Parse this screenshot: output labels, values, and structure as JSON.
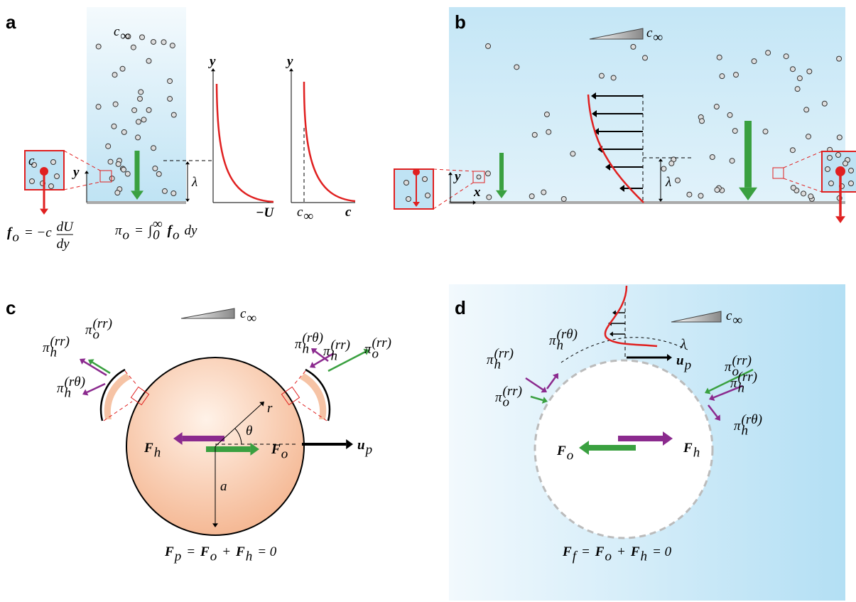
{
  "panel_a": {
    "label": "a",
    "conc": {
      "sym": "c",
      "sub": "∞"
    },
    "inset_conc": "c",
    "y_axis": "y",
    "decay_length": "λ",
    "potential_plot": {
      "y_label": "y",
      "x_label": "−U"
    },
    "conc_plot": {
      "y_label": "y",
      "x_label": "c",
      "tick": {
        "sym": "c",
        "sub": "∞"
      }
    },
    "force_eq": [
      {
        "sym": "f",
        "sub": "o"
      },
      {
        "sym": "= −c"
      },
      {
        "frac": [
          "dU",
          "dy"
        ]
      }
    ],
    "pressure_eq": [
      {
        "sym": "π",
        "sub": "o"
      },
      {
        "sym": "="
      },
      {
        "sym": "∫",
        "sub": "0",
        "sup": "∞"
      },
      {
        "sym": "f",
        "sub": "o"
      },
      {
        "sym": "dy"
      }
    ]
  },
  "panel_b": {
    "label": "b",
    "conc": {
      "sym": "c",
      "sub": "∞"
    },
    "y_axis": "y",
    "x_axis": "x",
    "decay_length": "λ"
  },
  "panel_c": {
    "label": "c",
    "conc": {
      "sym": "c",
      "sub": "∞"
    },
    "hydro_force": {
      "sym": "F",
      "sub": "h"
    },
    "osmotic_force": {
      "sym": "F",
      "sub": "o"
    },
    "velocity": {
      "sym": "u",
      "sub": "p"
    },
    "radius": "a",
    "r": "r",
    "theta": "θ",
    "stress_labels": [
      {
        "sym": "π",
        "sub": "o",
        "sup": "(rr)"
      },
      {
        "sym": "π",
        "sub": "h",
        "sup": "(rr)"
      },
      {
        "sym": "π",
        "sub": "h",
        "sup": "(rθ)"
      },
      {
        "sym": "π",
        "sub": "h",
        "sup": "(rθ)"
      },
      {
        "sym": "π",
        "sub": "h",
        "sup": "(rr)"
      },
      {
        "sym": "π",
        "sub": "o",
        "sup": "(rr)"
      }
    ],
    "balance": [
      {
        "sym": "F",
        "sub": "p"
      },
      {
        "sym": "="
      },
      {
        "sym": "F",
        "sub": "o"
      },
      {
        "sym": "+"
      },
      {
        "sym": "F",
        "sub": "h"
      },
      {
        "sym": "= 0"
      }
    ]
  },
  "panel_d": {
    "label": "d",
    "conc": {
      "sym": "c",
      "sub": "∞"
    },
    "decay_length": "λ",
    "velocity": {
      "sym": "u",
      "sub": "p"
    },
    "osmotic_force": {
      "sym": "F",
      "sub": "o"
    },
    "hydro_force": {
      "sym": "F",
      "sub": "h"
    },
    "stress_labels": [
      {
        "sym": "π",
        "sub": "h",
        "sup": "(rr)"
      },
      {
        "sym": "π",
        "sub": "h",
        "sup": "(rθ)"
      },
      {
        "sym": "π",
        "sub": "o",
        "sup": "(rr)"
      },
      {
        "sym": "π",
        "sub": "o",
        "sup": "(rr)"
      },
      {
        "sym": "π",
        "sub": "h",
        "sup": "(rr)"
      },
      {
        "sym": "π",
        "sub": "h",
        "sup": "(rθ)"
      }
    ],
    "balance": [
      {
        "sym": "F",
        "sub": "f"
      },
      {
        "sym": "="
      },
      {
        "sym": "F",
        "sub": "o"
      },
      {
        "sym": "+"
      },
      {
        "sym": "F",
        "sub": "h"
      },
      {
        "sym": "= 0"
      }
    ]
  }
}
